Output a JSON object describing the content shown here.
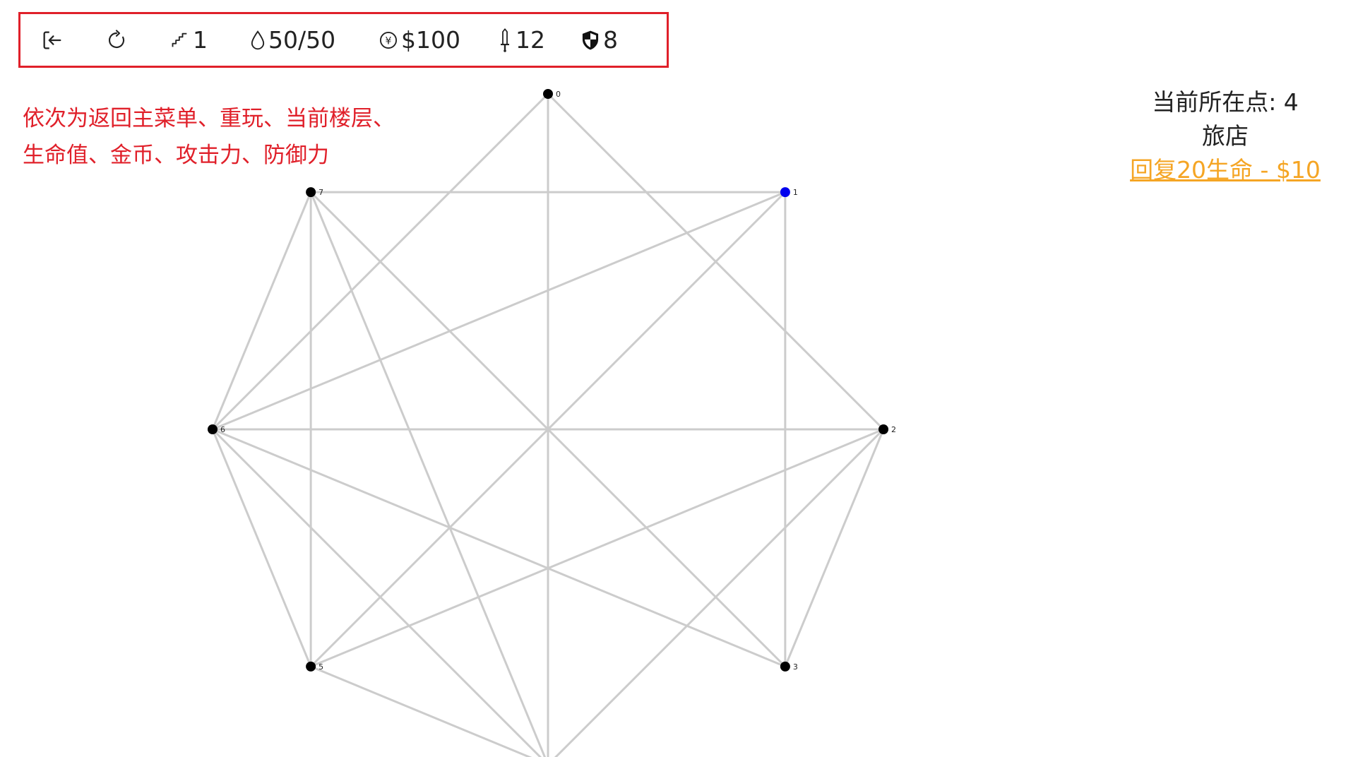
{
  "toolbar": {
    "exit_label": "return-to-main-menu",
    "restart_label": "restart",
    "floor": "1",
    "hp": "50/50",
    "gold": "$100",
    "attack": "12",
    "defense": "8"
  },
  "annotation": {
    "line1": "依次为返回主菜单、重玩、当前楼层、",
    "line2": "生命值、金币、攻击力、防御力"
  },
  "info": {
    "current_point": "当前所在点: 4",
    "location_type": "旅店",
    "action": "回复20生命 - $10"
  },
  "graph": {
    "nodes": [
      {
        "id": "0",
        "color": "#000000"
      },
      {
        "id": "1",
        "color": "#0000ee"
      },
      {
        "id": "2",
        "color": "#000000"
      },
      {
        "id": "3",
        "color": "#000000"
      },
      {
        "id": "4",
        "color": "#ee0000"
      },
      {
        "id": "5",
        "color": "#000000"
      },
      {
        "id": "6",
        "color": "#000000"
      },
      {
        "id": "7",
        "color": "#000000"
      }
    ],
    "edges": [
      [
        "0",
        "2"
      ],
      [
        "0",
        "4"
      ],
      [
        "0",
        "6"
      ],
      [
        "1",
        "7"
      ],
      [
        "1",
        "3"
      ],
      [
        "1",
        "5"
      ],
      [
        "1",
        "6"
      ],
      [
        "2",
        "6"
      ],
      [
        "2",
        "4"
      ],
      [
        "2",
        "5"
      ],
      [
        "2",
        "3"
      ],
      [
        "3",
        "7"
      ],
      [
        "3",
        "6"
      ],
      [
        "4",
        "5"
      ],
      [
        "4",
        "6"
      ],
      [
        "4",
        "7"
      ],
      [
        "5",
        "7"
      ],
      [
        "5",
        "6"
      ],
      [
        "6",
        "7"
      ]
    ],
    "edge_color": "#cccccc",
    "current_node": "4",
    "highlight_node": "1"
  }
}
